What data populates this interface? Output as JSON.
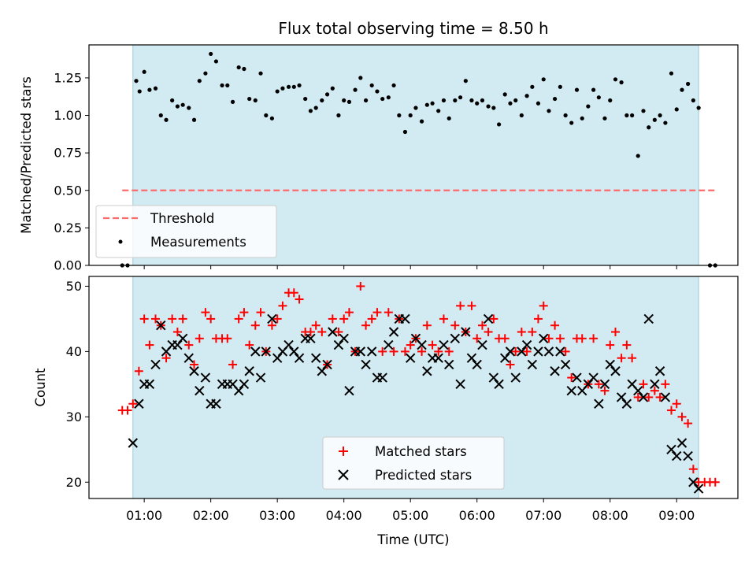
{
  "chart_data": [
    {
      "type": "scatter",
      "title": "Flux total observing time = 8.50 h",
      "xlabel": "",
      "ylabel": "Matched/Predicted stars",
      "xlim": [
        0.17,
        9.92
      ],
      "ylim": [
        0.0,
        1.47
      ],
      "yticks": [
        0.0,
        0.25,
        0.5,
        0.75,
        1.0,
        1.25
      ],
      "ytick_labels": [
        "0.00",
        "0.25",
        "0.50",
        "0.75",
        "1.00",
        "1.25"
      ],
      "grid": false,
      "legend": {
        "placement": "lower-left",
        "entries": [
          "Threshold",
          "Measurements"
        ]
      },
      "observing_window": [
        0.83,
        9.33
      ],
      "window_color": "#add8e6",
      "threshold": {
        "name": "Threshold",
        "value": 0.5,
        "x_range": [
          0.67,
          9.58
        ],
        "color": "#ff6b6b"
      },
      "series": [
        {
          "name": "Measurements",
          "color": "#000000",
          "x": [
            0.67,
            0.75,
            0.88,
            0.93,
            1.0,
            1.08,
            1.17,
            1.25,
            1.33,
            1.42,
            1.5,
            1.58,
            1.67,
            1.75,
            1.83,
            1.92,
            2.0,
            2.08,
            2.17,
            2.25,
            2.33,
            2.42,
            2.5,
            2.58,
            2.67,
            2.75,
            2.83,
            2.92,
            3.0,
            3.08,
            3.17,
            3.25,
            3.33,
            3.42,
            3.5,
            3.58,
            3.67,
            3.75,
            3.83,
            3.92,
            4.0,
            4.08,
            4.17,
            4.25,
            4.33,
            4.42,
            4.5,
            4.58,
            4.67,
            4.75,
            4.83,
            4.92,
            5.0,
            5.08,
            5.17,
            5.25,
            5.33,
            5.42,
            5.5,
            5.58,
            5.67,
            5.75,
            5.83,
            5.92,
            6.0,
            6.08,
            6.17,
            6.25,
            6.33,
            6.42,
            6.5,
            6.58,
            6.67,
            6.75,
            6.83,
            6.92,
            7.0,
            7.08,
            7.17,
            7.25,
            7.33,
            7.42,
            7.5,
            7.58,
            7.67,
            7.75,
            7.83,
            7.92,
            8.0,
            8.08,
            8.17,
            8.25,
            8.33,
            8.42,
            8.5,
            8.58,
            8.67,
            8.75,
            8.83,
            8.92,
            9.0,
            9.08,
            9.17,
            9.25,
            9.33,
            9.5,
            9.58
          ],
          "y": [
            0.0,
            0.0,
            1.23,
            1.16,
            1.29,
            1.17,
            1.18,
            1.0,
            0.97,
            1.1,
            1.06,
            1.07,
            1.05,
            0.97,
            1.23,
            1.28,
            1.41,
            1.36,
            1.2,
            1.2,
            1.09,
            1.32,
            1.31,
            1.11,
            1.1,
            1.28,
            1.0,
            0.98,
            1.16,
            1.18,
            1.19,
            1.19,
            1.2,
            1.11,
            1.03,
            1.05,
            1.1,
            1.14,
            1.18,
            1.0,
            1.1,
            1.09,
            1.17,
            1.25,
            1.1,
            1.2,
            1.16,
            1.11,
            1.12,
            1.2,
            1.0,
            0.89,
            1.0,
            1.05,
            0.96,
            1.07,
            1.08,
            1.03,
            1.1,
            0.98,
            1.1,
            1.12,
            1.23,
            1.1,
            1.08,
            1.1,
            1.06,
            1.05,
            0.94,
            1.14,
            1.08,
            1.1,
            1.0,
            1.13,
            1.19,
            1.08,
            1.24,
            1.03,
            1.11,
            1.19,
            1.0,
            0.95,
            1.17,
            0.98,
            1.06,
            1.17,
            1.12,
            0.98,
            1.1,
            1.24,
            1.22,
            1.0,
            1.0,
            0.73,
            1.03,
            0.92,
            0.97,
            1.0,
            0.95,
            1.28,
            1.04,
            1.17,
            1.21,
            1.1,
            1.05,
            0.0,
            0.0
          ]
        }
      ]
    },
    {
      "type": "scatter",
      "title": "",
      "xlabel": "Time (UTC)",
      "ylabel": "Count",
      "xlim": [
        0.17,
        9.92
      ],
      "ylim": [
        17.5,
        51.5
      ],
      "xticks": [
        1,
        2,
        3,
        4,
        5,
        6,
        7,
        8,
        9
      ],
      "xtick_labels": [
        "01:00",
        "02:00",
        "03:00",
        "04:00",
        "05:00",
        "06:00",
        "07:00",
        "08:00",
        "09:00"
      ],
      "yticks": [
        20,
        30,
        40,
        50
      ],
      "ytick_labels": [
        "20",
        "30",
        "40",
        "50"
      ],
      "grid": false,
      "legend": {
        "placement": "lower-center",
        "entries": [
          "Matched stars",
          "Predicted stars"
        ]
      },
      "observing_window": [
        0.83,
        9.33
      ],
      "window_color": "#add8e6",
      "series": [
        {
          "name": "Matched stars",
          "marker": "plus",
          "color": "#ff0000",
          "x": [
            0.67,
            0.75,
            0.83,
            0.92,
            1.0,
            1.08,
            1.17,
            1.25,
            1.33,
            1.42,
            1.5,
            1.58,
            1.67,
            1.75,
            1.83,
            1.92,
            2.0,
            2.08,
            2.17,
            2.25,
            2.33,
            2.42,
            2.5,
            2.58,
            2.67,
            2.75,
            2.83,
            2.92,
            3.0,
            3.08,
            3.17,
            3.25,
            3.33,
            3.42,
            3.5,
            3.58,
            3.67,
            3.75,
            3.83,
            3.92,
            4.0,
            4.08,
            4.17,
            4.25,
            4.33,
            4.42,
            4.5,
            4.58,
            4.67,
            4.75,
            4.83,
            4.92,
            5.0,
            5.08,
            5.17,
            5.25,
            5.33,
            5.42,
            5.5,
            5.58,
            5.67,
            5.75,
            5.83,
            5.92,
            6.0,
            6.08,
            6.17,
            6.25,
            6.33,
            6.42,
            6.5,
            6.58,
            6.67,
            6.75,
            6.83,
            6.92,
            7.0,
            7.08,
            7.17,
            7.25,
            7.33,
            7.42,
            7.5,
            7.58,
            7.67,
            7.75,
            7.83,
            7.92,
            8.0,
            8.08,
            8.17,
            8.25,
            8.33,
            8.42,
            8.5,
            8.58,
            8.67,
            8.75,
            8.83,
            8.92,
            9.0,
            9.08,
            9.17,
            9.25,
            9.33,
            9.42,
            9.5,
            9.58
          ],
          "y": [
            31,
            31,
            32,
            37,
            45,
            41,
            45,
            44,
            39,
            45,
            43,
            45,
            41,
            38,
            42,
            46,
            45,
            42,
            42,
            42,
            38,
            45,
            46,
            41,
            44,
            46,
            40,
            44,
            45,
            47,
            49,
            49,
            48,
            43,
            43,
            44,
            43,
            38,
            45,
            43,
            45,
            46,
            40,
            50,
            44,
            45,
            46,
            40,
            46,
            40,
            45,
            40,
            41,
            42,
            40,
            44,
            41,
            40,
            45,
            40,
            44,
            47,
            43,
            47,
            42,
            44,
            43,
            45,
            42,
            42,
            38,
            40,
            43,
            40,
            43,
            45,
            47,
            42,
            44,
            42,
            40,
            36,
            42,
            42,
            35,
            42,
            35,
            34,
            41,
            43,
            39,
            41,
            39,
            33,
            35,
            33,
            34,
            33,
            35,
            31,
            32,
            30,
            29,
            22,
            20,
            20,
            20,
            20
          ]
        },
        {
          "name": "Predicted stars",
          "marker": "x",
          "color": "#000000",
          "x": [
            0.83,
            0.92,
            1.0,
            1.08,
            1.17,
            1.25,
            1.33,
            1.42,
            1.5,
            1.58,
            1.67,
            1.75,
            1.83,
            1.92,
            2.0,
            2.08,
            2.17,
            2.25,
            2.33,
            2.42,
            2.5,
            2.58,
            2.67,
            2.75,
            2.83,
            2.92,
            3.0,
            3.08,
            3.17,
            3.25,
            3.33,
            3.42,
            3.5,
            3.58,
            3.67,
            3.75,
            3.83,
            3.92,
            4.0,
            4.08,
            4.17,
            4.25,
            4.33,
            4.42,
            4.5,
            4.58,
            4.67,
            4.75,
            4.83,
            4.92,
            5.0,
            5.08,
            5.17,
            5.25,
            5.33,
            5.42,
            5.5,
            5.58,
            5.67,
            5.75,
            5.83,
            5.92,
            6.0,
            6.08,
            6.17,
            6.25,
            6.33,
            6.42,
            6.5,
            6.58,
            6.67,
            6.75,
            6.83,
            6.92,
            7.0,
            7.08,
            7.17,
            7.25,
            7.33,
            7.42,
            7.5,
            7.58,
            7.67,
            7.75,
            7.83,
            7.92,
            8.0,
            8.08,
            8.17,
            8.25,
            8.33,
            8.42,
            8.5,
            8.58,
            8.67,
            8.75,
            8.83,
            8.92,
            9.0,
            9.08,
            9.17,
            9.25,
            9.33
          ],
          "y": [
            26,
            32,
            35,
            35,
            38,
            44,
            40,
            41,
            41,
            42,
            39,
            37,
            34,
            36,
            32,
            32,
            35,
            35,
            35,
            34,
            35,
            37,
            40,
            36,
            40,
            45,
            39,
            40,
            41,
            40,
            39,
            42,
            42,
            39,
            37,
            38,
            43,
            41,
            42,
            34,
            40,
            40,
            38,
            40,
            36,
            36,
            41,
            43,
            45,
            45,
            39,
            42,
            41,
            37,
            39,
            39,
            41,
            38,
            42,
            35,
            43,
            39,
            38,
            41,
            45,
            36,
            35,
            39,
            40,
            36,
            40,
            41,
            38,
            40,
            42,
            40,
            37,
            40,
            38,
            34,
            36,
            34,
            35,
            36,
            32,
            35,
            38,
            37,
            33,
            32,
            35,
            34,
            33,
            45,
            35,
            37,
            33,
            25,
            24,
            26,
            24,
            20,
            19
          ]
        }
      ]
    }
  ]
}
